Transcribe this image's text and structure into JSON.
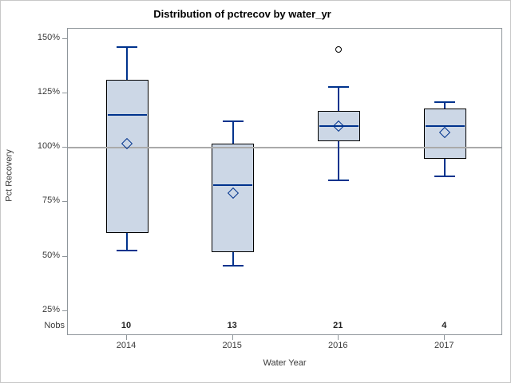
{
  "chart_data": {
    "type": "boxplot",
    "title": "Distribution of pctrecov by water_yr",
    "xlabel": "Water Year",
    "ylabel": "Pct Recovery",
    "nobs_label": "Nobs",
    "categories": [
      "2014",
      "2015",
      "2016",
      "2017"
    ],
    "nobs": [
      10,
      13,
      21,
      4
    ],
    "y_ticks": [
      150,
      125,
      100,
      75,
      50,
      25
    ],
    "y_tick_labels": [
      "150%",
      "125%",
      "100%",
      "75%",
      "50%",
      "25%"
    ],
    "ylim": [
      14,
      155
    ],
    "grid": "off",
    "reference_line": 100,
    "groups": [
      {
        "category": "2014",
        "n": 10,
        "whisker_low": 53,
        "q1": 61,
        "median": 115,
        "q3": 131,
        "whisker_high": 146,
        "mean": 102,
        "outliers": []
      },
      {
        "category": "2015",
        "n": 13,
        "whisker_low": 46,
        "q1": 52,
        "median": 83,
        "q3": 102,
        "whisker_high": 112,
        "mean": 79,
        "outliers": []
      },
      {
        "category": "2016",
        "n": 21,
        "whisker_low": 85,
        "q1": 103,
        "median": 110,
        "q3": 117,
        "whisker_high": 128,
        "mean": 110,
        "outliers": [
          145
        ]
      },
      {
        "category": "2017",
        "n": 4,
        "whisker_low": 87,
        "q1": 95,
        "median": 110,
        "q3": 118,
        "whisker_high": 121,
        "mean": 107,
        "outliers": []
      }
    ],
    "colors": {
      "box_fill": "#ccd7e6",
      "box_border": "#000000",
      "marker_line": "#00338d",
      "reference_line": "#aaaaaa",
      "frame": "#8f969b",
      "outlier": "#000000",
      "text": "#3a3a3a",
      "title_text": "#000000"
    }
  }
}
